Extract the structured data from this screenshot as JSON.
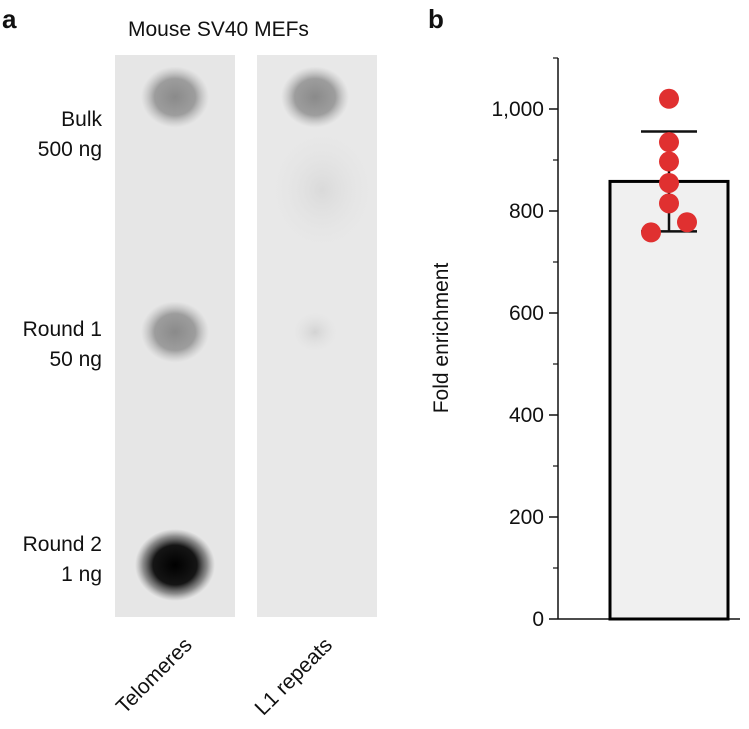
{
  "figure": {
    "panel_a_letter": "a",
    "panel_b_letter": "b",
    "blot_title": "Mouse SV40 MEFs",
    "rows": [
      {
        "line1": "Bulk",
        "line2": "500 ng"
      },
      {
        "line1": "Round 1",
        "line2": "50 ng"
      },
      {
        "line1": "Round 2",
        "line2": "1 ng"
      }
    ],
    "columns": [
      "Telomeres",
      "L1 repeats"
    ],
    "spot_intensity": {
      "Telomeres": [
        0.45,
        0.45,
        1.0
      ],
      "L1 repeats": [
        0.4,
        0.1,
        0.0
      ]
    },
    "colors": {
      "bar_fill": "#f0f0f0",
      "bar_stroke": "#000000",
      "points": "#e03030",
      "membrane": "#e6e6e6"
    }
  },
  "chart_data": {
    "type": "bar",
    "ylabel": "Fold enrichment",
    "ylim": [
      0,
      1100
    ],
    "yticks": [
      0,
      200,
      400,
      600,
      800,
      1000
    ],
    "ytick_labels": [
      "0",
      "200",
      "400",
      "600",
      "800",
      "1,000"
    ],
    "categories": [
      ""
    ],
    "values": [
      858
    ],
    "error": 98,
    "points": [
      1020,
      935,
      897,
      855,
      815,
      778,
      758
    ],
    "grid": false,
    "legend": "none"
  }
}
